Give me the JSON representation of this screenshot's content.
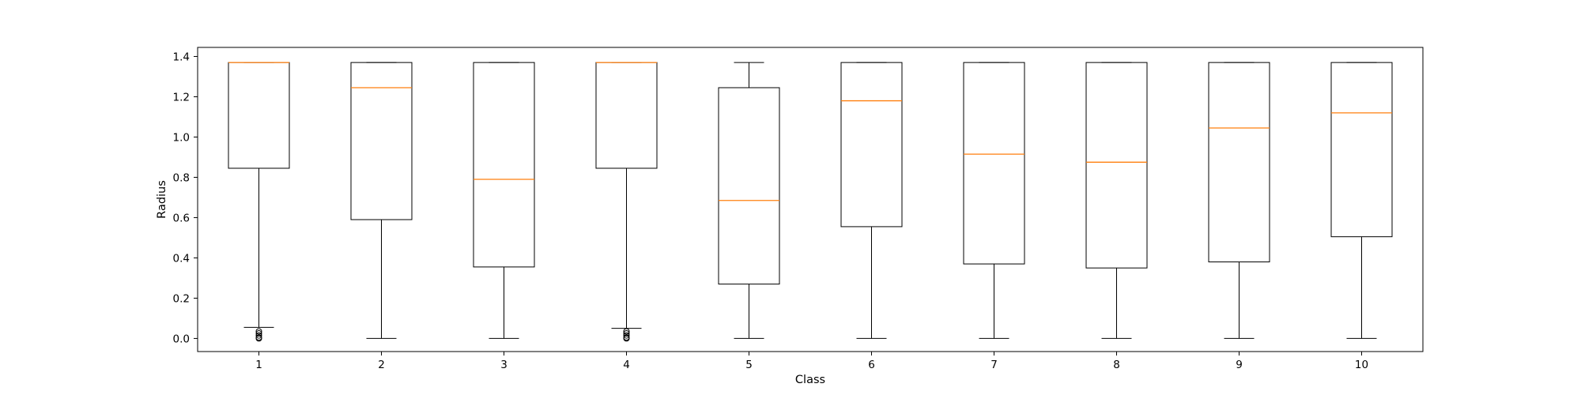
{
  "chart_data": {
    "type": "box",
    "title": "",
    "xlabel": "Class",
    "ylabel": "Radius",
    "ylim": [
      -0.065,
      1.445
    ],
    "yticks": [
      0.0,
      0.2,
      0.4,
      0.6,
      0.8,
      1.0,
      1.2,
      1.4
    ],
    "ytick_labels": [
      "0.0",
      "0.2",
      "0.4",
      "0.6",
      "0.8",
      "1.0",
      "1.2",
      "1.4"
    ],
    "categories": [
      "1",
      "2",
      "3",
      "4",
      "5",
      "6",
      "7",
      "8",
      "9",
      "10"
    ],
    "grid": false,
    "legend": "none",
    "colors": {
      "box": "#000000",
      "median": "#ff7f0e",
      "background": "#ffffff"
    },
    "boxes": [
      {
        "label": "1",
        "whisker_low": 0.055,
        "q1": 0.845,
        "median": 1.37,
        "q3": 1.37,
        "whisker_high": 1.37,
        "outliers": [
          0.035,
          0.025,
          0.015,
          0.005,
          0.0
        ]
      },
      {
        "label": "2",
        "whisker_low": 0.0,
        "q1": 0.59,
        "median": 1.245,
        "q3": 1.37,
        "whisker_high": 1.37,
        "outliers": []
      },
      {
        "label": "3",
        "whisker_low": 0.0,
        "q1": 0.355,
        "median": 0.79,
        "q3": 1.37,
        "whisker_high": 1.37,
        "outliers": []
      },
      {
        "label": "4",
        "whisker_low": 0.05,
        "q1": 0.845,
        "median": 1.37,
        "q3": 1.37,
        "whisker_high": 1.37,
        "outliers": [
          0.035,
          0.025,
          0.015,
          0.005,
          0.0
        ]
      },
      {
        "label": "5",
        "whisker_low": 0.0,
        "q1": 0.27,
        "median": 0.685,
        "q3": 1.245,
        "whisker_high": 1.37,
        "outliers": []
      },
      {
        "label": "6",
        "whisker_low": 0.0,
        "q1": 0.555,
        "median": 1.18,
        "q3": 1.37,
        "whisker_high": 1.37,
        "outliers": []
      },
      {
        "label": "7",
        "whisker_low": 0.0,
        "q1": 0.37,
        "median": 0.915,
        "q3": 1.37,
        "whisker_high": 1.37,
        "outliers": []
      },
      {
        "label": "8",
        "whisker_low": 0.0,
        "q1": 0.35,
        "median": 0.875,
        "q3": 1.37,
        "whisker_high": 1.37,
        "outliers": []
      },
      {
        "label": "9",
        "whisker_low": 0.0,
        "q1": 0.38,
        "median": 1.045,
        "q3": 1.37,
        "whisker_high": 1.37,
        "outliers": []
      },
      {
        "label": "10",
        "whisker_low": 0.0,
        "q1": 0.505,
        "median": 1.12,
        "q3": 1.37,
        "whisker_high": 1.37,
        "outliers": []
      }
    ]
  }
}
